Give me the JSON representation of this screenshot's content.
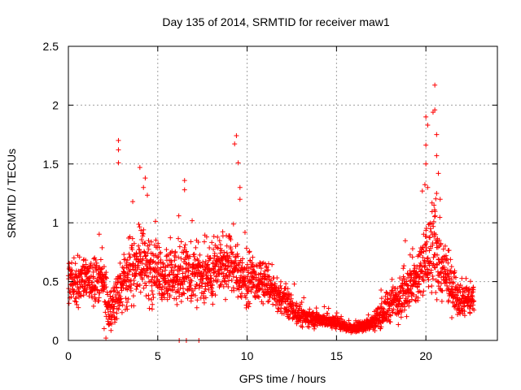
{
  "chart_data": {
    "type": "scatter",
    "title": "Day 135 of 2014, SRMTID for receiver maw1",
    "xlabel": "GPS time / hours",
    "ylabel": "SRMTID / TECUs",
    "xlim": [
      0,
      24
    ],
    "ylim": [
      0,
      2.5
    ],
    "grid": true,
    "marker": "+",
    "color": "#ff0000",
    "x_ticks": [
      0,
      5,
      10,
      15,
      20
    ],
    "x_tick_labels": [
      "0",
      "5",
      "10",
      "15",
      "20"
    ],
    "y_ticks": [
      0,
      0.5,
      1,
      1.5,
      2,
      2.5
    ],
    "y_tick_labels": [
      "0",
      "0.5",
      "1",
      "1.5",
      "2",
      "2.5"
    ],
    "series": [
      {
        "name": "SRMTID",
        "profile_x": [
          0,
          1,
          2,
          2.3,
          3,
          4,
          5,
          6,
          7,
          8,
          9,
          10,
          11,
          11.5,
          12,
          13,
          14,
          15,
          15.5,
          16,
          16.5,
          17,
          18,
          19,
          19.5,
          20,
          20.5,
          21,
          22,
          22.7
        ],
        "profile_y": [
          0.5,
          0.5,
          0.5,
          0.2,
          0.5,
          0.65,
          0.55,
          0.55,
          0.55,
          0.6,
          0.65,
          0.5,
          0.5,
          0.4,
          0.35,
          0.2,
          0.18,
          0.15,
          0.12,
          0.1,
          0.12,
          0.15,
          0.3,
          0.45,
          0.5,
          0.7,
          0.8,
          0.55,
          0.35,
          0.35
        ],
        "profile_spread": [
          0.25,
          0.25,
          0.28,
          0.15,
          0.3,
          0.35,
          0.3,
          0.3,
          0.3,
          0.3,
          0.3,
          0.25,
          0.2,
          0.15,
          0.15,
          0.1,
          0.08,
          0.07,
          0.05,
          0.05,
          0.06,
          0.08,
          0.2,
          0.25,
          0.3,
          0.45,
          0.5,
          0.3,
          0.18,
          0.15
        ],
        "extremes": [
          {
            "x": 2.8,
            "y": 1.7
          },
          {
            "x": 2.8,
            "y": 1.62
          },
          {
            "x": 2.8,
            "y": 1.51
          },
          {
            "x": 4.0,
            "y": 1.47
          },
          {
            "x": 4.3,
            "y": 1.38
          },
          {
            "x": 4.2,
            "y": 1.3
          },
          {
            "x": 6.5,
            "y": 1.36
          },
          {
            "x": 6.5,
            "y": 1.28
          },
          {
            "x": 3.6,
            "y": 1.18
          },
          {
            "x": 9.4,
            "y": 1.74
          },
          {
            "x": 9.3,
            "y": 1.67
          },
          {
            "x": 9.5,
            "y": 1.51
          },
          {
            "x": 9.6,
            "y": 1.3
          },
          {
            "x": 9.6,
            "y": 1.2
          },
          {
            "x": 19.8,
            "y": 1.27
          },
          {
            "x": 20.0,
            "y": 1.9
          },
          {
            "x": 20.1,
            "y": 1.83
          },
          {
            "x": 20.0,
            "y": 1.66
          },
          {
            "x": 20.0,
            "y": 1.5
          },
          {
            "x": 20.1,
            "y": 1.3
          },
          {
            "x": 20.5,
            "y": 2.17
          },
          {
            "x": 20.5,
            "y": 1.96
          },
          {
            "x": 20.4,
            "y": 1.94
          },
          {
            "x": 20.6,
            "y": 1.75
          },
          {
            "x": 20.6,
            "y": 1.57
          },
          {
            "x": 20.7,
            "y": 1.42
          },
          {
            "x": 20.6,
            "y": 1.25
          },
          {
            "x": 20.8,
            "y": 1.2
          },
          {
            "x": 6.2,
            "y": 0.0
          },
          {
            "x": 6.6,
            "y": 0.0
          },
          {
            "x": 7.3,
            "y": 0.0
          },
          {
            "x": 2.1,
            "y": 0.02
          },
          {
            "x": 2.0,
            "y": 0.1
          }
        ],
        "point_count": 2600
      }
    ]
  }
}
